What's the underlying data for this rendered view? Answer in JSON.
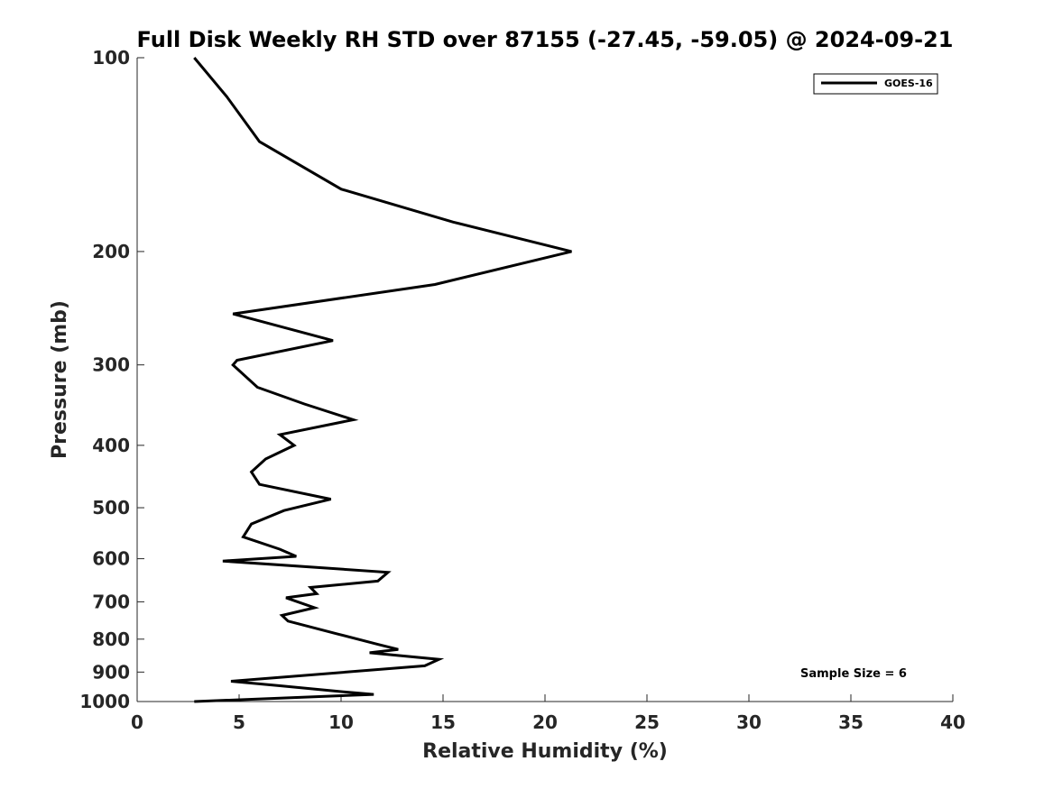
{
  "chart_data": {
    "type": "line",
    "title": "Full Disk Weekly RH STD over 87155 (-27.45, -59.05) @ 2024-09-21",
    "xlabel": "Relative Humidity (%)",
    "ylabel": "Pressure (mb)",
    "xlim": [
      0,
      40
    ],
    "ylim": [
      100,
      1000
    ],
    "y_scale": "log",
    "y_inverted": true,
    "grid": false,
    "xticks": [
      0,
      5,
      10,
      15,
      20,
      25,
      30,
      35,
      40
    ],
    "yticks": [
      100,
      200,
      300,
      400,
      500,
      600,
      700,
      800,
      900,
      1000
    ],
    "legend": {
      "position": "top-right",
      "entries": [
        "GOES-16"
      ]
    },
    "annotation": "Sample Size = 6",
    "series": [
      {
        "name": "GOES-16",
        "color": "#000000",
        "points": [
          [
            2.8,
            100
          ],
          [
            4.4,
            115
          ],
          [
            6.0,
            135
          ],
          [
            10.0,
            160
          ],
          [
            15.5,
            180
          ],
          [
            21.3,
            200
          ],
          [
            14.6,
            225
          ],
          [
            4.7,
            250
          ],
          [
            9.6,
            275
          ],
          [
            4.9,
            295
          ],
          [
            4.7,
            300
          ],
          [
            5.9,
            325
          ],
          [
            8.2,
            345
          ],
          [
            10.6,
            365
          ],
          [
            7.0,
            385
          ],
          [
            7.7,
            400
          ],
          [
            6.3,
            420
          ],
          [
            5.6,
            440
          ],
          [
            6.0,
            460
          ],
          [
            9.5,
            485
          ],
          [
            7.2,
            505
          ],
          [
            5.6,
            530
          ],
          [
            5.2,
            555
          ],
          [
            7.0,
            580
          ],
          [
            7.8,
            595
          ],
          [
            4.2,
            605
          ],
          [
            12.3,
            630
          ],
          [
            11.8,
            650
          ],
          [
            8.5,
            665
          ],
          [
            8.8,
            680
          ],
          [
            7.3,
            690
          ],
          [
            8.7,
            715
          ],
          [
            7.1,
            735
          ],
          [
            7.4,
            750
          ],
          [
            9.8,
            785
          ],
          [
            11.8,
            815
          ],
          [
            12.8,
            830
          ],
          [
            11.4,
            840
          ],
          [
            14.8,
            860
          ],
          [
            14.1,
            880
          ],
          [
            4.6,
            930
          ],
          [
            7.0,
            945
          ],
          [
            10.0,
            965
          ],
          [
            11.6,
            975
          ],
          [
            2.8,
            1000
          ]
        ]
      }
    ]
  }
}
